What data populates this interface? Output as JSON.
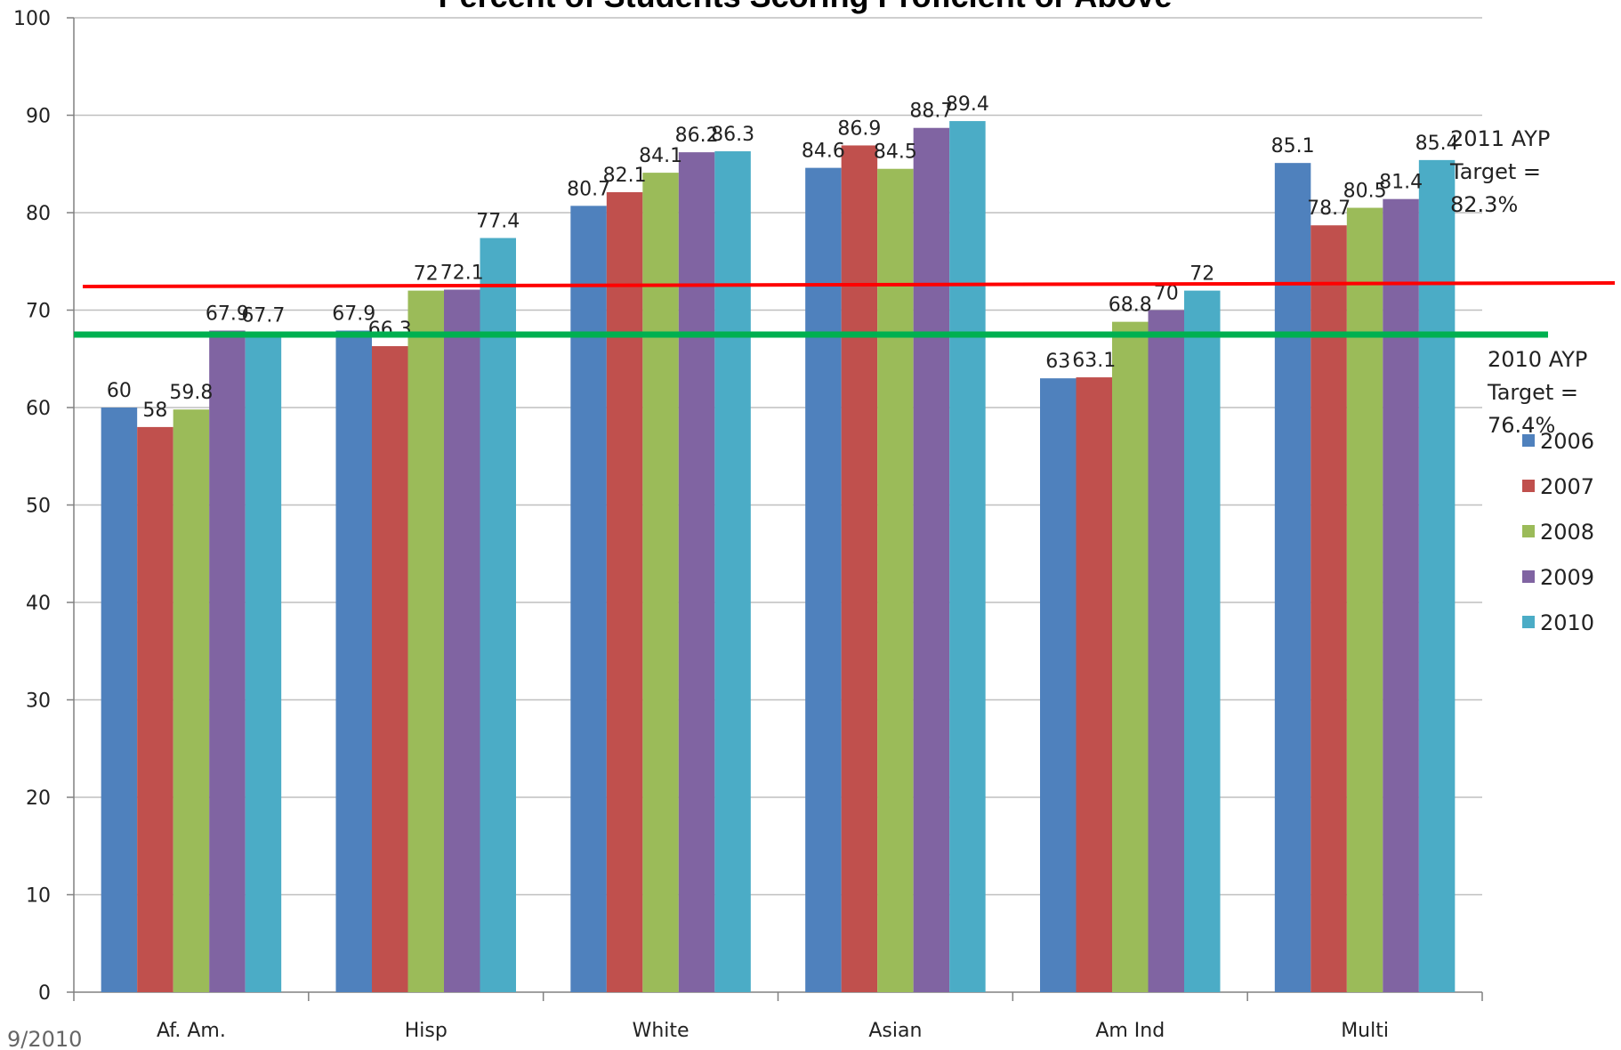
{
  "chart_data": {
    "type": "bar",
    "title": "Percent of Students Scoring Proficient or Above",
    "categories": [
      "Af. Am.",
      "Hisp",
      "White",
      "Asian",
      "Am Ind",
      "Multi"
    ],
    "series": [
      {
        "name": "2006",
        "color": "#4F81BD",
        "values": [
          60,
          67.9,
          80.7,
          84.6,
          63,
          85.1
        ]
      },
      {
        "name": "2007",
        "color": "#C0504D",
        "values": [
          58,
          66.3,
          82.1,
          86.9,
          63.1,
          78.7
        ]
      },
      {
        "name": "2008",
        "color": "#9BBB59",
        "values": [
          59.8,
          72,
          84.1,
          84.5,
          68.8,
          80.5
        ]
      },
      {
        "name": "2009",
        "color": "#8064A2",
        "values": [
          67.9,
          72.1,
          86.2,
          88.7,
          70,
          81.4
        ]
      },
      {
        "name": "2010",
        "color": "#4BACC6",
        "values": [
          67.7,
          77.4,
          86.3,
          89.4,
          72,
          85.4
        ]
      }
    ],
    "ylim": [
      0,
      100
    ],
    "yticks": [
      0,
      10,
      20,
      30,
      40,
      50,
      60,
      70,
      80,
      90,
      100
    ],
    "grid": true,
    "legend_position": "right",
    "reference_lines": [
      {
        "color": "#FF0000",
        "lines": [
          "2011 AYP",
          "Target =",
          "82.3%"
        ]
      },
      {
        "color": "#00B050",
        "lines": [
          "2010 AYP",
          "Target =",
          "76.4%"
        ]
      }
    ]
  },
  "footer": "9/2010"
}
